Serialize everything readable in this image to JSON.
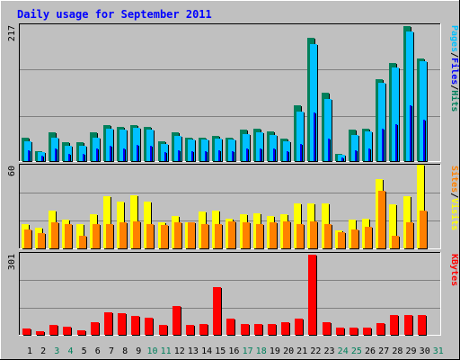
{
  "chart_data": {
    "type": "bar",
    "title": "Daily usage for September 2011",
    "days": [
      1,
      2,
      3,
      4,
      5,
      6,
      7,
      8,
      9,
      10,
      11,
      12,
      13,
      14,
      15,
      16,
      17,
      18,
      19,
      20,
      21,
      22,
      23,
      24,
      25,
      26,
      27,
      28,
      29,
      30,
      31
    ],
    "weekend_days": [
      3,
      4,
      10,
      11,
      17,
      18,
      24,
      25,
      31
    ],
    "colors": {
      "hits": "#00805c",
      "files": "#00c0ff",
      "files_inner": "#0000ff",
      "visits": "#ffff00",
      "sites": "#ff8000",
      "kbytes": "#ff0000",
      "title": "#0000ff",
      "weekday_tick": "#000000",
      "weekend_tick": "#00805c",
      "plot_bg": "#c0c0c0",
      "grid": "#808080"
    },
    "panels": [
      {
        "id": "pages-files-hits",
        "axis_max": "217",
        "ylim": [
          0,
          217
        ],
        "side_labels": [
          {
            "text": "Pages",
            "color": "#00c0ff"
          },
          {
            "text": "/",
            "color": "#000000"
          },
          {
            "text": "Files",
            "color": "#0000ff"
          },
          {
            "text": "/",
            "color": "#000000"
          },
          {
            "text": "Hits",
            "color": "#00805c"
          }
        ],
        "series": [
          {
            "name": "Hits",
            "values": [
              38,
              16,
              46,
              30,
              30,
              46,
              58,
              55,
              58,
              55,
              32,
              46,
              38,
              38,
              40,
              38,
              50,
              52,
              48,
              36,
              90,
              198,
              110,
              12,
              50,
              52,
              132,
              158,
              217,
              165,
              0
            ]
          },
          {
            "name": "Files",
            "values": [
              32,
              14,
              38,
              24,
              24,
              38,
              52,
              50,
              54,
              50,
              28,
              40,
              34,
              34,
              36,
              34,
              44,
              46,
              42,
              32,
              80,
              188,
              100,
              10,
              42,
              48,
              126,
              150,
              208,
              160,
              0
            ]
          },
          {
            "name": "Pages",
            "values": [
              18,
              8,
              20,
              12,
              12,
              20,
              24,
              20,
              26,
              24,
              14,
              18,
              16,
              16,
              18,
              16,
              20,
              20,
              20,
              16,
              28,
              78,
              36,
              6,
              18,
              20,
              52,
              60,
              90,
              66,
              0
            ]
          }
        ]
      },
      {
        "id": "visits-sites",
        "axis_max": "60",
        "ylim": [
          0,
          60
        ],
        "side_labels": [
          {
            "text": "Sites",
            "color": "#ff8000"
          },
          {
            "text": "/",
            "color": "#000000"
          },
          {
            "text": "Visits",
            "color": "#ffff00"
          }
        ],
        "series": [
          {
            "name": "Visits",
            "values": [
              18,
              15,
              28,
              21,
              18,
              25,
              38,
              34,
              39,
              34,
              19,
              24,
              19,
              27,
              28,
              22,
              25,
              26,
              24,
              25,
              33,
              33,
              33,
              13,
              21,
              22,
              51,
              32,
              38,
              61,
              0
            ]
          },
          {
            "name": "Sites",
            "values": [
              14,
              11,
              19,
              18,
              9,
              18,
              18,
              19,
              20,
              18,
              17,
              19,
              19,
              18,
              18,
              20,
              19,
              18,
              19,
              20,
              18,
              20,
              18,
              12,
              14,
              16,
              42,
              9,
              19,
              28,
              0
            ]
          }
        ]
      },
      {
        "id": "kbytes",
        "axis_max": "301",
        "ylim": [
          0,
          301
        ],
        "side_labels": [
          {
            "text": "KBytes",
            "color": "#ff0000"
          }
        ],
        "series": [
          {
            "name": "KBytes",
            "values": [
              22,
              12,
              38,
              32,
              18,
              48,
              84,
              82,
              72,
              64,
              38,
              108,
              38,
              40,
              178,
              62,
              40,
              40,
              42,
              48,
              62,
              301,
              48,
              26,
              26,
              26,
              44,
              74,
              74,
              74,
              0
            ]
          }
        ]
      }
    ]
  }
}
